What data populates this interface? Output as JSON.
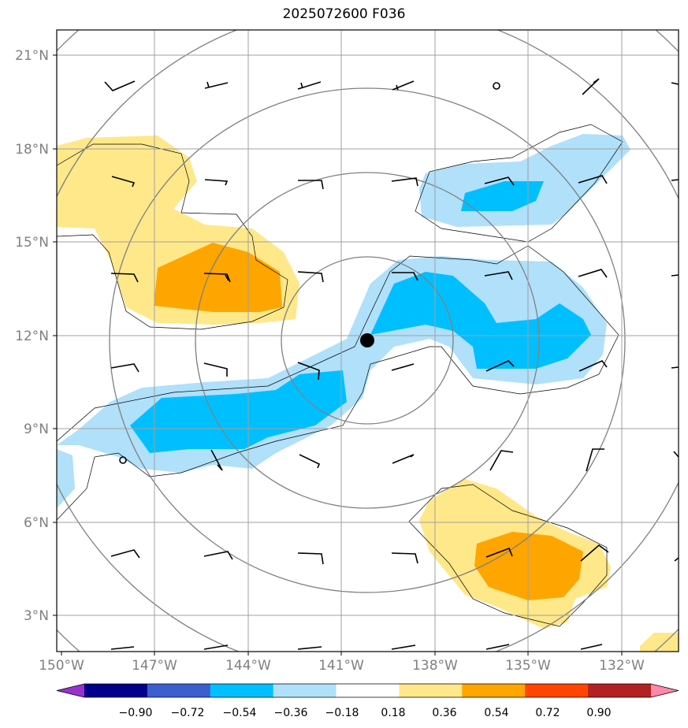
{
  "title": "2025072600 F036",
  "lat_labels": [
    "21°N",
    "18°N",
    "15°N",
    "12°N",
    "9°N",
    "6°N",
    "3°N"
  ],
  "lon_labels": [
    "150°W",
    "147°W",
    "144°W",
    "141°W",
    "138°W",
    "135°W",
    "132°W"
  ],
  "colorbar": {
    "labels": [
      "−0.90",
      "−0.72",
      "−0.54",
      "−0.36",
      "−0.18",
      "0.18",
      "0.36",
      "0.54",
      "0.72",
      "0.90"
    ],
    "colors": [
      "#9932cc",
      "#00008b",
      "#3a5fcd",
      "#00bfff",
      "#b0e0fa",
      "#ffffff",
      "#ffe88a",
      "#ffa500",
      "#ff4500",
      "#b22222",
      "#ff88aa"
    ]
  },
  "storm_center": {
    "lat": 11.8,
    "lon": -139.8
  },
  "range_ring_color": "#808080",
  "map_extent": {
    "lon": [
      -150,
      -130
    ],
    "lat": [
      2,
      22
    ]
  }
}
